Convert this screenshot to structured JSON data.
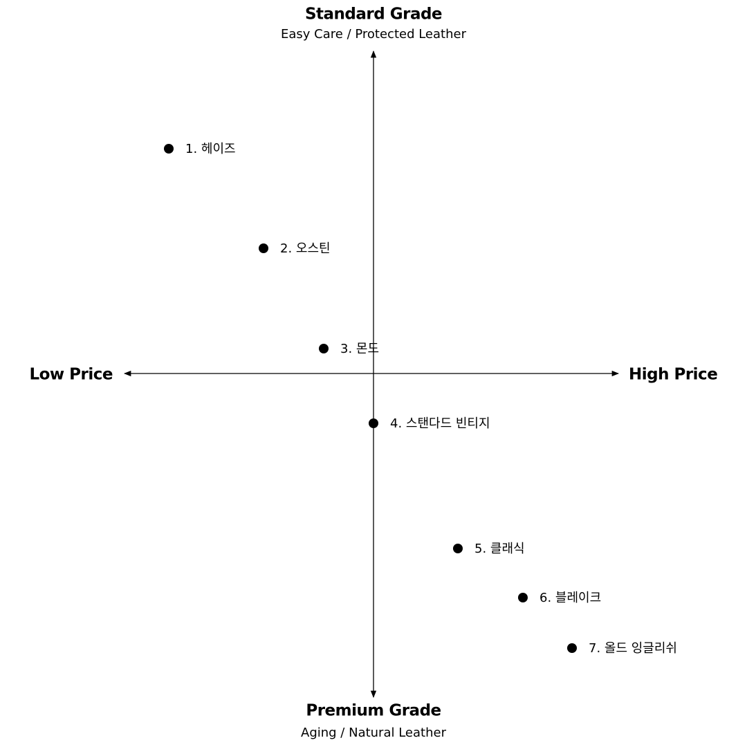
{
  "top_label": {
    "title": "Standard Grade",
    "subtitle": "Easy Care / Protected Leather"
  },
  "bottom_label": {
    "title": "Premium Grade",
    "subtitle": "Aging / Natural Leather"
  },
  "left_label": "Low Price",
  "right_label": "High Price",
  "items": [
    "1. 헤이즈",
    "2. 오스틴",
    "3. 몬도",
    "4. 스탠다드 빈티지",
    "5. 클래식",
    "6. 블레이크",
    "7. 올드 잉글리쉬"
  ]
}
